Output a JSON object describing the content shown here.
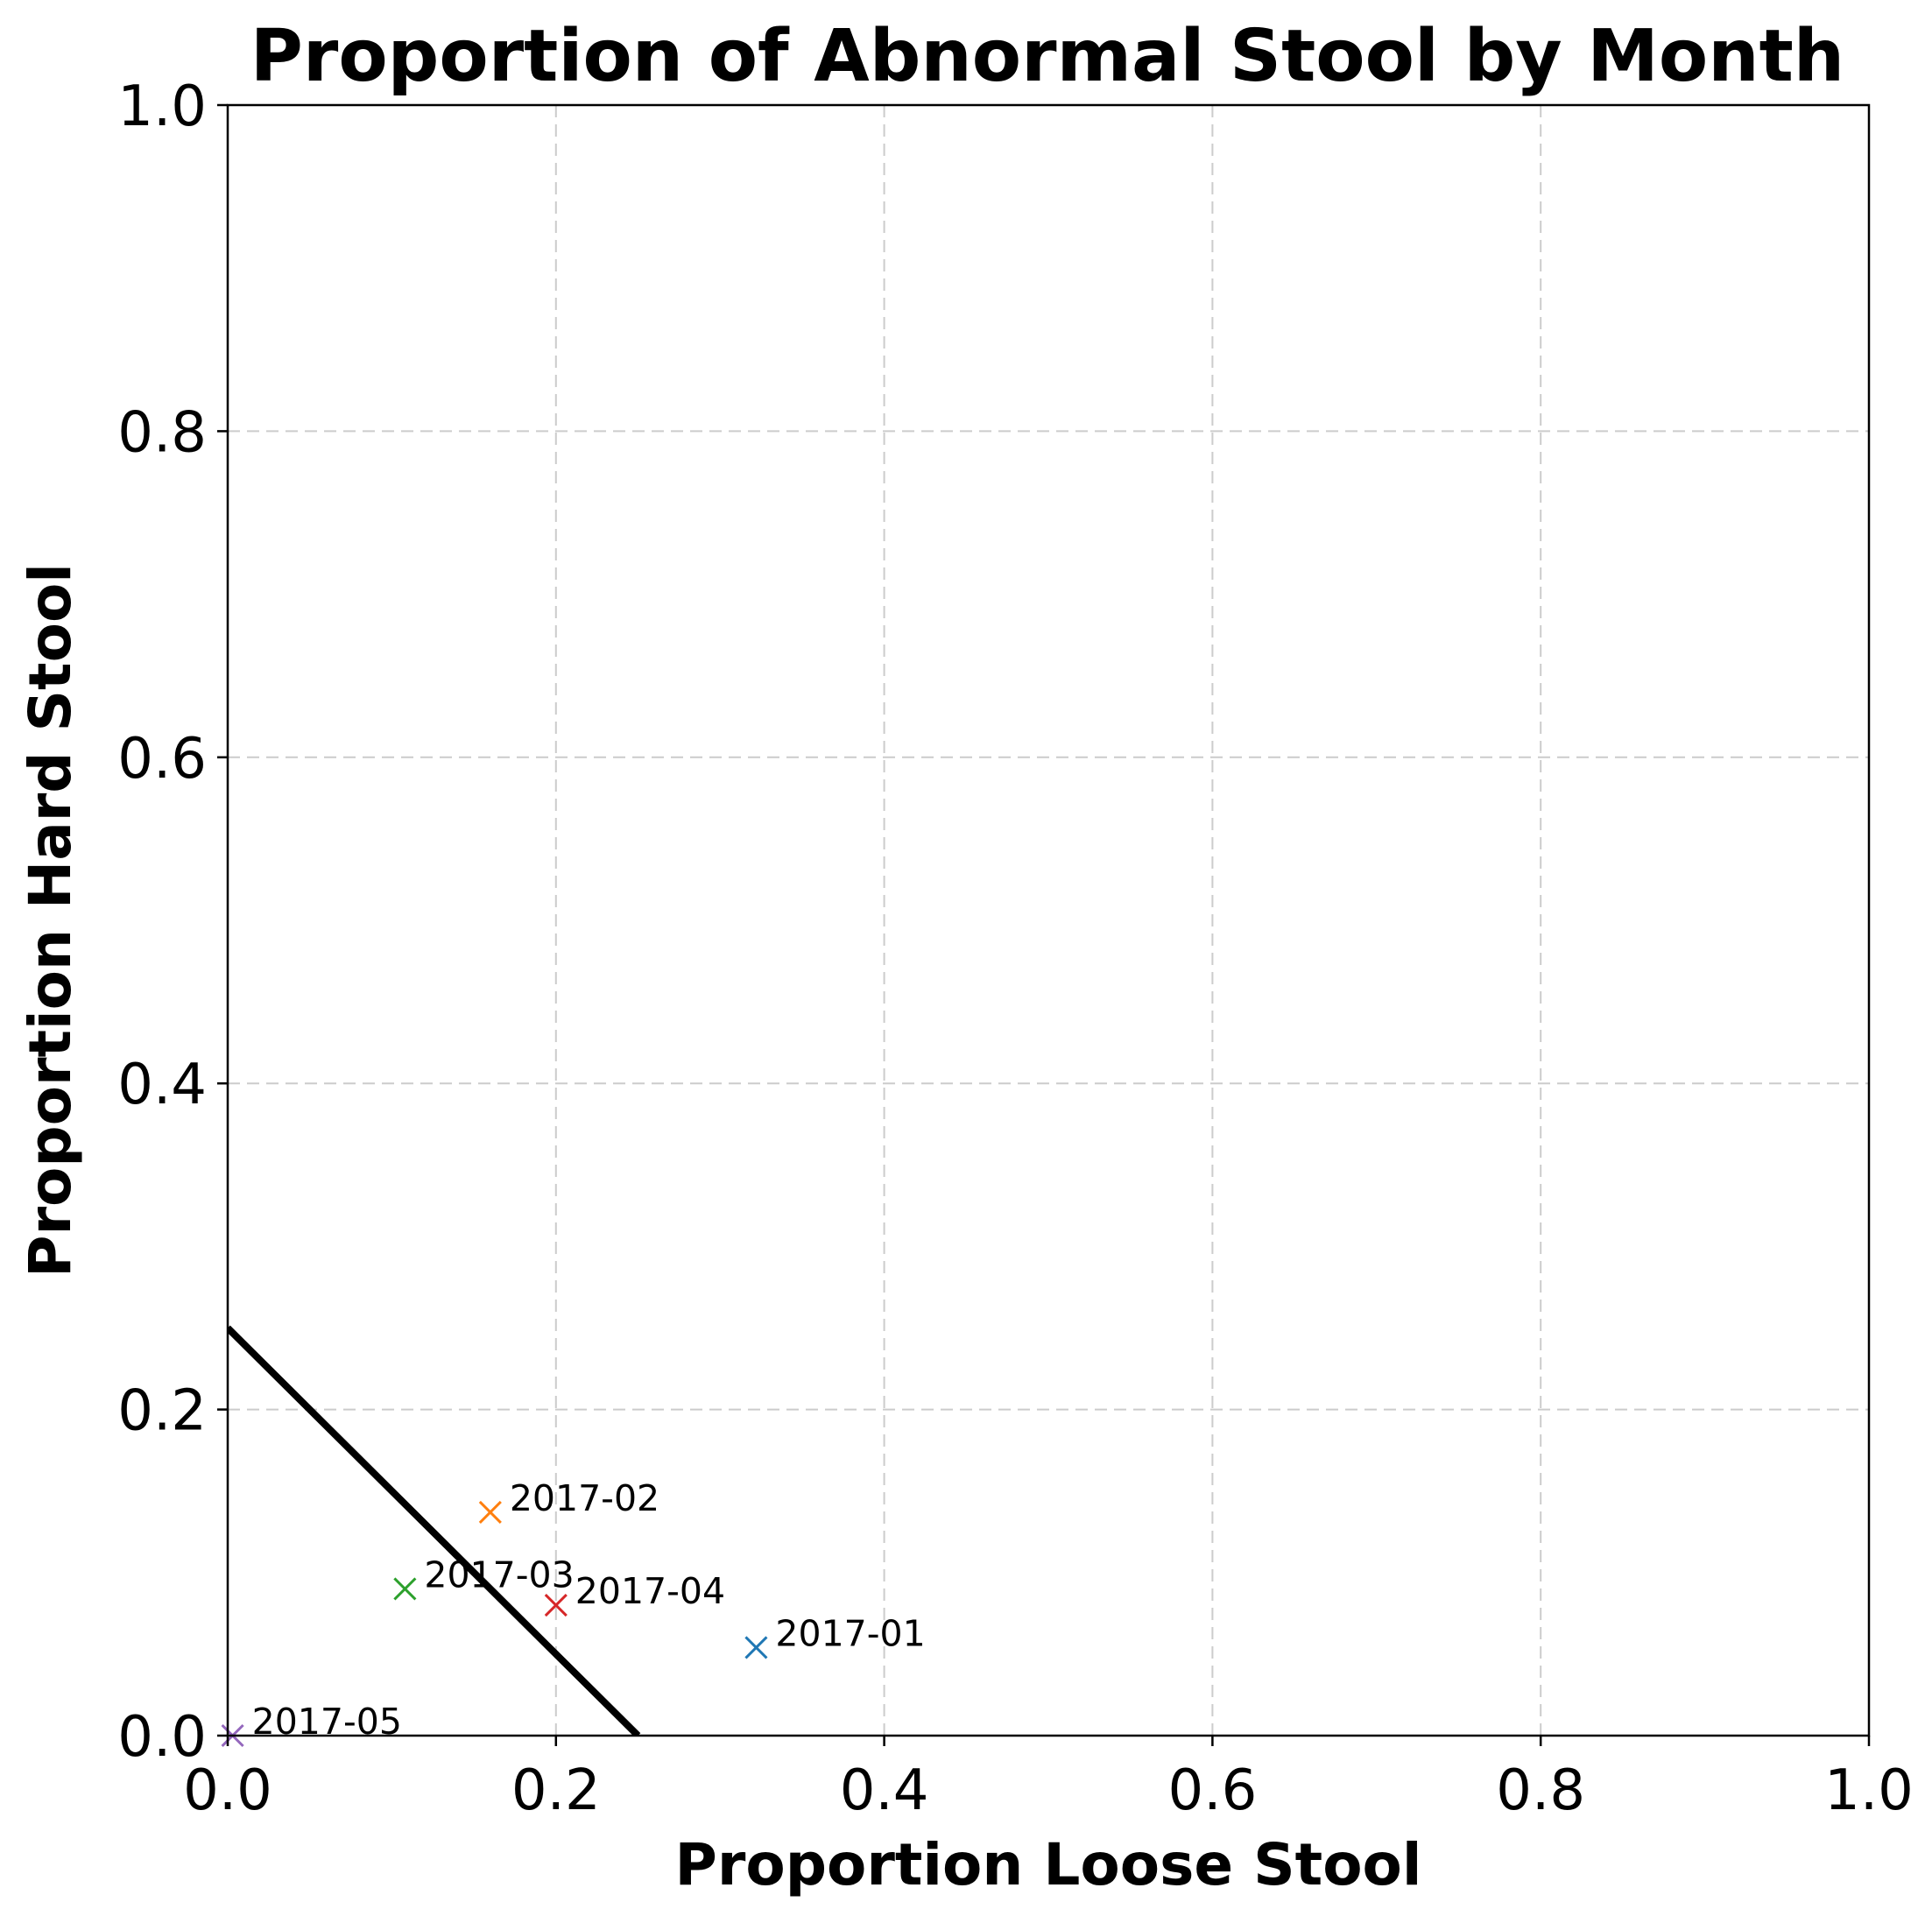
{
  "chart_data": {
    "type": "scatter",
    "title": "Proportion of Abnormal Stool by Month",
    "xlabel": "Proportion Loose Stool",
    "ylabel": "Proportion Hard Stool",
    "xlim": [
      0.0,
      1.0
    ],
    "ylim": [
      0.0,
      1.0
    ],
    "x_ticks": [
      "0.0",
      "0.2",
      "0.4",
      "0.6",
      "0.8",
      "1.0"
    ],
    "y_ticks": [
      "0.0",
      "0.2",
      "0.4",
      "0.6",
      "0.8",
      "1.0"
    ],
    "grid": true,
    "grid_style": "dashed",
    "marker": "x",
    "points": [
      {
        "label": "2017-01",
        "x": 0.322,
        "y": 0.054,
        "color": "#1f77b4"
      },
      {
        "label": "2017-02",
        "x": 0.16,
        "y": 0.137,
        "color": "#ff7f0e"
      },
      {
        "label": "2017-03",
        "x": 0.108,
        "y": 0.09,
        "color": "#2ca02c"
      },
      {
        "label": "2017-04",
        "x": 0.2,
        "y": 0.08,
        "color": "#d62728"
      },
      {
        "label": "2017-05",
        "x": 0.003,
        "y": 0.0,
        "color": "#9467bd"
      }
    ],
    "reference_line": {
      "x": [
        0.0,
        0.25
      ],
      "y": [
        0.25,
        0.0
      ],
      "color": "#000000"
    }
  }
}
